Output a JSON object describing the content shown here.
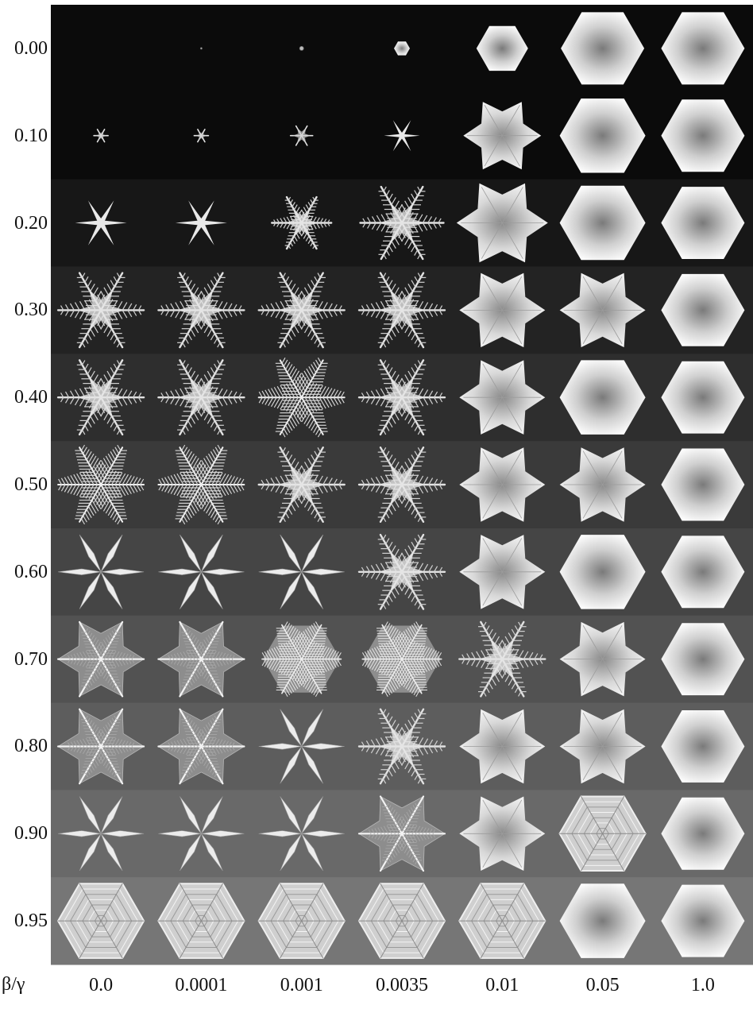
{
  "figure": {
    "row_axis": {
      "values": [
        "0.00",
        "0.10",
        "0.20",
        "0.30",
        "0.40",
        "0.50",
        "0.60",
        "0.70",
        "0.80",
        "0.90",
        "0.95"
      ]
    },
    "col_axis": {
      "symbol": "β/γ",
      "values": [
        "0.0",
        "0.0001",
        "0.001",
        "0.0035",
        "0.01",
        "0.05",
        "1.0"
      ]
    },
    "row_shades": [
      "#0b0b0b",
      "#0b0b0b",
      "#171717",
      "#232323",
      "#2e2e2e",
      "#3a3a3a",
      "#454545",
      "#525252",
      "#5d5d5d",
      "#696969",
      "#767676"
    ],
    "cells": [
      [
        "none",
        "dot",
        "dot",
        "hexagon",
        "hexagon",
        "hexagon",
        "hexagon"
      ],
      [
        "star",
        "star",
        "star",
        "star",
        "star-plate",
        "hexagon",
        "hexagon"
      ],
      [
        "star",
        "star",
        "dendrite",
        "dendrite",
        "star-plate",
        "hexagon",
        "hexagon"
      ],
      [
        "dendrite",
        "dendrite",
        "dendrite",
        "dendrite",
        "star-plate",
        "star-plate",
        "hexagon"
      ],
      [
        "dendrite",
        "dendrite",
        "fern",
        "dendrite",
        "star-plate",
        "hexagon",
        "hexagon"
      ],
      [
        "fern",
        "fern",
        "dendrite",
        "dendrite",
        "star-plate",
        "star-plate",
        "hexagon"
      ],
      [
        "needle-star",
        "needle-star",
        "needle-star",
        "dendrite",
        "star-plate",
        "hexagon",
        "hexagon"
      ],
      [
        "sectored-plate",
        "sectored-plate",
        "fern-plate",
        "fern-plate",
        "dendrite",
        "star-plate",
        "hexagon"
      ],
      [
        "sectored-plate",
        "sectored-plate",
        "needle-star",
        "dendrite",
        "star-plate",
        "star-plate",
        "hexagon"
      ],
      [
        "needle-star",
        "needle-star",
        "needle-star",
        "sectored-plate",
        "star-plate",
        "lacy-hexagon",
        "hexagon"
      ],
      [
        "lacy-hexagon",
        "lacy-hexagon",
        "lacy-hexagon",
        "lacy-hexagon",
        "lacy-hexagon",
        "hexagon",
        "hexagon"
      ]
    ],
    "sizes": [
      [
        0,
        2,
        5,
        20,
        65,
        105,
        105
      ],
      [
        18,
        18,
        28,
        45,
        98,
        108,
        105
      ],
      [
        65,
        65,
        75,
        105,
        115,
        108,
        105
      ],
      [
        108,
        108,
        108,
        108,
        108,
        108,
        105
      ],
      [
        108,
        108,
        108,
        108,
        108,
        108,
        105
      ],
      [
        108,
        108,
        108,
        108,
        108,
        108,
        105
      ],
      [
        108,
        108,
        108,
        108,
        108,
        108,
        105
      ],
      [
        108,
        108,
        108,
        108,
        108,
        108,
        105
      ],
      [
        108,
        108,
        108,
        108,
        108,
        108,
        105
      ],
      [
        108,
        108,
        108,
        108,
        108,
        108,
        105
      ],
      [
        108,
        108,
        108,
        108,
        108,
        108,
        105
      ]
    ]
  }
}
